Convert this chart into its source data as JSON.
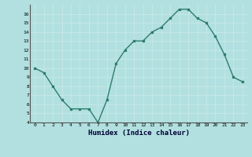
{
  "x": [
    0,
    1,
    2,
    3,
    4,
    5,
    6,
    7,
    8,
    9,
    10,
    11,
    12,
    13,
    14,
    15,
    16,
    17,
    18,
    19,
    20,
    21,
    22,
    23
  ],
  "y": [
    10,
    9.5,
    8,
    6.5,
    5.5,
    5.5,
    5.5,
    4,
    6.5,
    10.5,
    12,
    13,
    13,
    14,
    14.5,
    15.5,
    16.5,
    16.5,
    15.5,
    15,
    13.5,
    11.5,
    9,
    8.5
  ],
  "xlabel": "Humidex (Indice chaleur)",
  "line_color": "#2e7d6e",
  "bg_color": "#b2e0e0",
  "grid_color": "#d0ecec",
  "ylim": [
    4,
    17
  ],
  "xlim": [
    -0.5,
    23.5
  ],
  "yticks": [
    4,
    5,
    6,
    7,
    8,
    9,
    10,
    11,
    12,
    13,
    14,
    15,
    16
  ],
  "xticks": [
    0,
    1,
    2,
    3,
    4,
    5,
    6,
    7,
    8,
    9,
    10,
    11,
    12,
    13,
    14,
    15,
    16,
    17,
    18,
    19,
    20,
    21,
    22,
    23
  ]
}
